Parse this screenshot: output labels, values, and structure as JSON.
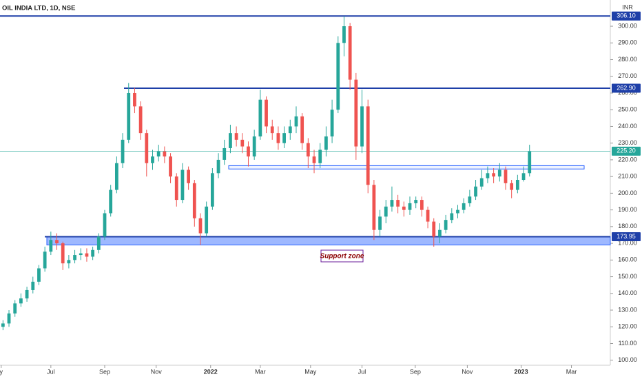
{
  "chart_data": {
    "type": "candlestick",
    "title": "OIL INDIA LTD, 1D, NSE",
    "currency": "INR",
    "up_color": "#26a69a",
    "down_color": "#ef5350",
    "open": [
      120,
      122,
      128,
      134,
      137,
      142,
      147,
      155,
      165,
      172,
      170,
      158,
      160,
      163,
      164,
      162,
      166,
      174,
      188,
      202,
      218,
      232,
      260,
      252,
      236,
      218,
      222,
      225,
      222,
      210,
      196,
      214,
      206,
      185,
      176,
      192,
      212,
      220,
      227,
      236,
      232,
      228,
      222,
      234,
      256,
      240,
      236,
      230,
      236,
      240,
      246,
      230,
      222,
      218,
      226,
      234,
      250,
      290,
      300,
      268,
      228,
      252,
      205,
      178,
      186,
      192,
      196,
      192,
      190,
      194,
      196,
      190,
      183,
      174,
      178,
      184,
      188,
      190,
      194,
      198,
      204,
      209,
      212,
      210,
      214,
      206,
      202,
      208,
      212
    ],
    "high": [
      124,
      130,
      136,
      140,
      144,
      150,
      157,
      168,
      177,
      176,
      171,
      163,
      166,
      167,
      167,
      168,
      176,
      190,
      205,
      222,
      236,
      266,
      263,
      255,
      238,
      226,
      229,
      228,
      224,
      212,
      218,
      216,
      208,
      188,
      195,
      215,
      224,
      232,
      241,
      240,
      236,
      231,
      238,
      262,
      258,
      244,
      240,
      240,
      244,
      252,
      248,
      233,
      226,
      230,
      240,
      256,
      294,
      306,
      302,
      272,
      262,
      256,
      208,
      190,
      196,
      204,
      199,
      195,
      198,
      198,
      198,
      192,
      185,
      182,
      187,
      191,
      193,
      197,
      202,
      208,
      214,
      216,
      215,
      218,
      216,
      208,
      211,
      216,
      229
    ],
    "low": [
      118,
      120,
      126,
      132,
      135,
      140,
      145,
      153,
      163,
      166,
      154,
      155,
      158,
      160,
      159,
      160,
      164,
      172,
      186,
      200,
      215,
      230,
      248,
      232,
      210,
      214,
      219,
      218,
      206,
      192,
      194,
      202,
      180,
      169,
      174,
      190,
      209,
      217,
      224,
      228,
      224,
      216,
      220,
      232,
      236,
      232,
      226,
      227,
      232,
      236,
      226,
      215,
      212,
      215,
      222,
      230,
      248,
      282,
      262,
      220,
      224,
      200,
      172,
      174,
      182,
      189,
      188,
      186,
      187,
      191,
      186,
      179,
      168,
      170,
      176,
      182,
      185,
      188,
      192,
      196,
      202,
      206,
      206,
      207,
      202,
      197,
      200,
      207,
      210
    ],
    "close": [
      122,
      128,
      134,
      137,
      142,
      147,
      155,
      165,
      172,
      170,
      158,
      160,
      163,
      164,
      162,
      166,
      174,
      188,
      202,
      218,
      232,
      260,
      252,
      236,
      218,
      222,
      225,
      222,
      210,
      196,
      214,
      206,
      185,
      176,
      192,
      212,
      220,
      227,
      236,
      232,
      228,
      222,
      234,
      256,
      240,
      236,
      230,
      236,
      240,
      246,
      230,
      222,
      218,
      226,
      234,
      250,
      290,
      300,
      268,
      228,
      252,
      205,
      178,
      186,
      192,
      196,
      192,
      190,
      194,
      196,
      190,
      183,
      174,
      178,
      184,
      188,
      190,
      194,
      198,
      204,
      209,
      212,
      210,
      214,
      206,
      202,
      208,
      212,
      225
    ],
    "xlim": [
      -0.5,
      101.5
    ],
    "xticks": [
      {
        "value": -0.3,
        "label": "y"
      },
      {
        "value": 8,
        "label": "Jul"
      },
      {
        "value": 17,
        "label": "Sep"
      },
      {
        "value": 25.6,
        "label": "Nov"
      },
      {
        "value": 34.7,
        "label": "2022"
      },
      {
        "value": 43,
        "label": "Mar"
      },
      {
        "value": 51.4,
        "label": "May"
      },
      {
        "value": 60,
        "label": "Jul"
      },
      {
        "value": 68.9,
        "label": "Sep"
      },
      {
        "value": 77.6,
        "label": "Nov"
      },
      {
        "value": 86.6,
        "label": "2023"
      },
      {
        "value": 95,
        "label": "Mar"
      }
    ],
    "ylim": [
      97,
      315.7
    ],
    "yticks": [
      {
        "value": 100,
        "label": "100.00"
      },
      {
        "value": 110,
        "label": "110.00"
      },
      {
        "value": 120,
        "label": "120.00"
      },
      {
        "value": 130,
        "label": "130.00"
      },
      {
        "value": 140,
        "label": "140.00"
      },
      {
        "value": 150,
        "label": "150.00"
      },
      {
        "value": 160,
        "label": "160.00"
      },
      {
        "value": 170,
        "label": "170.00"
      },
      {
        "value": 180,
        "label": "180.00"
      },
      {
        "value": 190,
        "label": "190.00"
      },
      {
        "value": 200,
        "label": "200.00"
      },
      {
        "value": 210,
        "label": "210.00"
      },
      {
        "value": 220,
        "label": "220.00"
      },
      {
        "value": 230,
        "label": "230.00"
      },
      {
        "value": 240,
        "label": "240.00"
      },
      {
        "value": 250,
        "label": "250.00"
      },
      {
        "value": 260,
        "label": "260.00"
      },
      {
        "value": 270,
        "label": "270.00"
      },
      {
        "value": 280,
        "label": "280.00"
      },
      {
        "value": 290,
        "label": "290.00"
      },
      {
        "value": 300,
        "label": "300.00"
      }
    ],
    "levels": [
      {
        "value": 306.1,
        "label": "306.10",
        "color": "#1e3fa8"
      },
      {
        "value": 262.9,
        "label": "262.90",
        "color": "#1e3fa8"
      },
      {
        "value": 225.2,
        "label": "225.20",
        "color": "#26a69a"
      },
      {
        "value": 173.95,
        "label": "173.95",
        "color": "#1e3fa8"
      }
    ],
    "zones": [
      {
        "low": 169,
        "high": 173.95
      },
      {
        "low": 214.5,
        "high": 216.5
      }
    ],
    "annotation": "Support zone"
  }
}
